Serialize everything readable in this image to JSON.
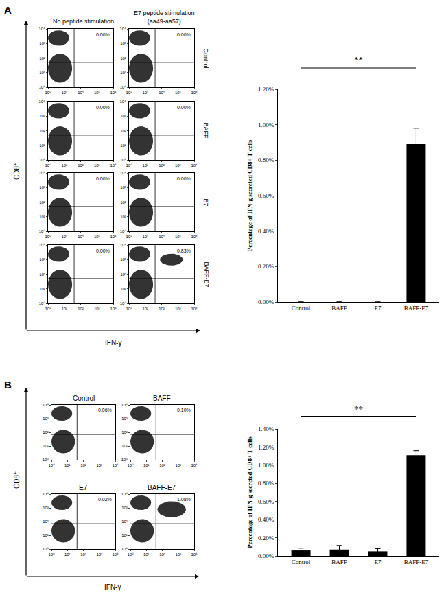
{
  "panels": [
    {
      "label": "A",
      "column_headers": [
        "No peptide stimulation",
        "E7 peptide stimulation (aa49-aa57)"
      ],
      "row_labels": [
        "Control",
        "BAFF",
        "E7",
        "BAFF-E7"
      ],
      "x_label": "IFN-γ",
      "y_label": "CD8⁺"
    },
    {
      "label": "B",
      "x_label": "IFN-γ",
      "y_label": "CD8⁺"
    }
  ],
  "chart_data": [
    {
      "type": "scatter",
      "panel": "A",
      "log": true,
      "xlim": [
        1,
        10000
      ],
      "ylim": [
        1,
        10000
      ],
      "xticks": [
        {
          "value": 1,
          "label": "10⁰"
        },
        {
          "value": 10,
          "label": "10¹"
        },
        {
          "value": 100,
          "label": "10²"
        },
        {
          "value": 1000,
          "label": "10³"
        },
        {
          "value": 10000,
          "label": "10⁴"
        }
      ],
      "yticks": [
        {
          "value": 1,
          "label": "10⁰"
        },
        {
          "value": 10,
          "label": "10¹"
        },
        {
          "value": 100,
          "label": "10²"
        },
        {
          "value": 1000,
          "label": "10³"
        },
        {
          "value": 10000,
          "label": "10⁴"
        }
      ],
      "gates": {
        "x": 40,
        "y": 50
      },
      "quadrant_label": "0.00%",
      "populations": [
        {
          "x0": 1,
          "x1": 20,
          "y0": 700,
          "y1": 8000
        },
        {
          "x0": 1,
          "x1": 30,
          "y0": 2,
          "y1": 200
        }
      ],
      "color": "#000000"
    },
    {
      "type": "scatter",
      "panel": "A",
      "log": true,
      "xlim": [
        1,
        10000
      ],
      "ylim": [
        1,
        10000
      ],
      "xticks": [
        {
          "value": 1,
          "label": "10⁰"
        },
        {
          "value": 10,
          "label": "10¹"
        },
        {
          "value": 100,
          "label": "10²"
        },
        {
          "value": 1000,
          "label": "10³"
        },
        {
          "value": 10000,
          "label": "10⁴"
        }
      ],
      "yticks": [
        {
          "value": 1,
          "label": "10⁰"
        },
        {
          "value": 10,
          "label": "10¹"
        },
        {
          "value": 100,
          "label": "10²"
        },
        {
          "value": 1000,
          "label": "10³"
        },
        {
          "value": 10000,
          "label": "10⁴"
        }
      ],
      "gates": {
        "x": 40,
        "y": 50
      },
      "quadrant_label": "0.00%",
      "populations": [
        {
          "x0": 1,
          "x1": 20,
          "y0": 700,
          "y1": 8000
        },
        {
          "x0": 1,
          "x1": 30,
          "y0": 2,
          "y1": 200
        }
      ],
      "color": "#000000"
    },
    {
      "type": "scatter",
      "panel": "A",
      "log": true,
      "xlim": [
        1,
        10000
      ],
      "ylim": [
        1,
        10000
      ],
      "xticks": [
        {
          "value": 1,
          "label": "10⁰"
        },
        {
          "value": 10,
          "label": "10¹"
        },
        {
          "value": 100,
          "label": "10²"
        },
        {
          "value": 1000,
          "label": "10³"
        },
        {
          "value": 10000,
          "label": "10⁴"
        }
      ],
      "yticks": [
        {
          "value": 1,
          "label": "10⁰"
        },
        {
          "value": 10,
          "label": "10¹"
        },
        {
          "value": 100,
          "label": "10²"
        },
        {
          "value": 1000,
          "label": "10³"
        },
        {
          "value": 10000,
          "label": "10⁴"
        }
      ],
      "gates": {
        "x": 40,
        "y": 50
      },
      "quadrant_label": "0.00%",
      "populations": [
        {
          "x0": 1,
          "x1": 20,
          "y0": 700,
          "y1": 8000
        },
        {
          "x0": 1,
          "x1": 30,
          "y0": 2,
          "y1": 200
        }
      ],
      "color": "#000000"
    },
    {
      "type": "scatter",
      "panel": "A",
      "log": true,
      "xlim": [
        1,
        10000
      ],
      "ylim": [
        1,
        10000
      ],
      "xticks": [
        {
          "value": 1,
          "label": "10⁰"
        },
        {
          "value": 10,
          "label": "10¹"
        },
        {
          "value": 100,
          "label": "10²"
        },
        {
          "value": 1000,
          "label": "10³"
        },
        {
          "value": 10000,
          "label": "10⁴"
        }
      ],
      "yticks": [
        {
          "value": 1,
          "label": "10⁰"
        },
        {
          "value": 10,
          "label": "10¹"
        },
        {
          "value": 100,
          "label": "10²"
        },
        {
          "value": 1000,
          "label": "10³"
        },
        {
          "value": 10000,
          "label": "10⁴"
        }
      ],
      "gates": {
        "x": 40,
        "y": 50
      },
      "quadrant_label": "0.00%",
      "populations": [
        {
          "x0": 1,
          "x1": 20,
          "y0": 700,
          "y1": 8000
        },
        {
          "x0": 1,
          "x1": 30,
          "y0": 2,
          "y1": 200
        }
      ],
      "color": "#000000"
    },
    {
      "type": "scatter",
      "panel": "A",
      "log": true,
      "xlim": [
        1,
        10000
      ],
      "ylim": [
        1,
        10000
      ],
      "xticks": [
        {
          "value": 1,
          "label": "10⁰"
        },
        {
          "value": 10,
          "label": "10¹"
        },
        {
          "value": 100,
          "label": "10²"
        },
        {
          "value": 1000,
          "label": "10³"
        },
        {
          "value": 10000,
          "label": "10⁴"
        }
      ],
      "yticks": [
        {
          "value": 1,
          "label": "10⁰"
        },
        {
          "value": 10,
          "label": "10¹"
        },
        {
          "value": 100,
          "label": "10²"
        },
        {
          "value": 1000,
          "label": "10³"
        },
        {
          "value": 10000,
          "label": "10⁴"
        }
      ],
      "gates": {
        "x": 40,
        "y": 50
      },
      "quadrant_label": "0.00%",
      "populations": [
        {
          "x0": 1,
          "x1": 20,
          "y0": 700,
          "y1": 8000
        },
        {
          "x0": 1,
          "x1": 30,
          "y0": 2,
          "y1": 200
        }
      ],
      "color": "#000000"
    },
    {
      "type": "scatter",
      "panel": "A",
      "log": true,
      "xlim": [
        1,
        10000
      ],
      "ylim": [
        1,
        10000
      ],
      "xticks": [
        {
          "value": 1,
          "label": "10⁰"
        },
        {
          "value": 10,
          "label": "10¹"
        },
        {
          "value": 100,
          "label": "10²"
        },
        {
          "value": 1000,
          "label": "10³"
        },
        {
          "value": 10000,
          "label": "10⁴"
        }
      ],
      "yticks": [
        {
          "value": 1,
          "label": "10⁰"
        },
        {
          "value": 10,
          "label": "10¹"
        },
        {
          "value": 100,
          "label": "10²"
        },
        {
          "value": 1000,
          "label": "10³"
        },
        {
          "value": 10000,
          "label": "10⁴"
        }
      ],
      "gates": {
        "x": 40,
        "y": 50
      },
      "quadrant_label": "0.00%",
      "populations": [
        {
          "x0": 1,
          "x1": 20,
          "y0": 700,
          "y1": 8000
        },
        {
          "x0": 1,
          "x1": 30,
          "y0": 2,
          "y1": 200
        }
      ],
      "color": "#000000"
    },
    {
      "type": "scatter",
      "panel": "A",
      "log": true,
      "xlim": [
        1,
        10000
      ],
      "ylim": [
        1,
        10000
      ],
      "xticks": [
        {
          "value": 1,
          "label": "10⁰"
        },
        {
          "value": 10,
          "label": "10¹"
        },
        {
          "value": 100,
          "label": "10²"
        },
        {
          "value": 1000,
          "label": "10³"
        },
        {
          "value": 10000,
          "label": "10⁴"
        }
      ],
      "yticks": [
        {
          "value": 1,
          "label": "10⁰"
        },
        {
          "value": 10,
          "label": "10¹"
        },
        {
          "value": 100,
          "label": "10²"
        },
        {
          "value": 1000,
          "label": "10³"
        },
        {
          "value": 10000,
          "label": "10⁴"
        }
      ],
      "gates": {
        "x": 40,
        "y": 50
      },
      "quadrant_label": "0.00%",
      "populations": [
        {
          "x0": 1,
          "x1": 20,
          "y0": 700,
          "y1": 8000
        },
        {
          "x0": 1,
          "x1": 30,
          "y0": 2,
          "y1": 200
        }
      ],
      "color": "#000000"
    },
    {
      "type": "scatter",
      "panel": "A",
      "log": true,
      "xlim": [
        1,
        10000
      ],
      "ylim": [
        1,
        10000
      ],
      "xticks": [
        {
          "value": 1,
          "label": "10⁰"
        },
        {
          "value": 10,
          "label": "10¹"
        },
        {
          "value": 100,
          "label": "10²"
        },
        {
          "value": 1000,
          "label": "10³"
        },
        {
          "value": 10000,
          "label": "10⁴"
        }
      ],
      "yticks": [
        {
          "value": 1,
          "label": "10⁰"
        },
        {
          "value": 10,
          "label": "10¹"
        },
        {
          "value": 100,
          "label": "10²"
        },
        {
          "value": 1000,
          "label": "10³"
        },
        {
          "value": 10000,
          "label": "10⁴"
        }
      ],
      "gates": {
        "x": 40,
        "y": 50
      },
      "quadrant_label": "0.83%",
      "populations": [
        {
          "x0": 1,
          "x1": 20,
          "y0": 700,
          "y1": 8000
        },
        {
          "x0": 1,
          "x1": 30,
          "y0": 2,
          "y1": 200
        },
        {
          "x0": 80,
          "x1": 2000,
          "y0": 400,
          "y1": 2500
        }
      ],
      "color": "#000000"
    },
    {
      "type": "bar",
      "panel": "A",
      "categories": [
        "Control",
        "BAFF",
        "E7",
        "BAFF-E7"
      ],
      "values": [
        0,
        0,
        0,
        0.89
      ],
      "errors": [
        0,
        0,
        0,
        0.09
      ],
      "color": "#000000",
      "ylim": [
        0,
        1.2
      ],
      "yticks": [
        {
          "value": 0,
          "label": "0.00%"
        },
        {
          "value": 0.2,
          "label": "0.20%"
        },
        {
          "value": 0.4,
          "label": "0.40%"
        },
        {
          "value": 0.6,
          "label": "0.60%"
        },
        {
          "value": 0.8,
          "label": "0.80%"
        },
        {
          "value": 1.0,
          "label": "1.00%"
        },
        {
          "value": 1.2,
          "label": "1.20%"
        }
      ],
      "y_label": "Percentage of IFN-g secreted CD8+ T cells",
      "significance": {
        "from": "Control",
        "to": "BAFF-E7",
        "label": "**"
      }
    },
    {
      "type": "scatter",
      "panel": "B",
      "title": "Control",
      "log": true,
      "xlim": [
        1,
        10000
      ],
      "ylim": [
        1,
        10000
      ],
      "xticks": [
        {
          "value": 1,
          "label": "10⁰"
        },
        {
          "value": 10,
          "label": "10¹"
        },
        {
          "value": 100,
          "label": "10²"
        },
        {
          "value": 1000,
          "label": "10³"
        },
        {
          "value": 10000,
          "label": "10⁴"
        }
      ],
      "yticks": [
        {
          "value": 1,
          "label": "10⁰"
        },
        {
          "value": 10,
          "label": "10¹"
        },
        {
          "value": 100,
          "label": "10²"
        },
        {
          "value": 1000,
          "label": "10³"
        },
        {
          "value": 10000,
          "label": "10⁴"
        }
      ],
      "gates": {
        "x": 40,
        "y": 70
      },
      "quadrant_label": "0.06%",
      "populations": [
        {
          "x0": 1,
          "x1": 20,
          "y0": 700,
          "y1": 8000
        },
        {
          "x0": 1,
          "x1": 30,
          "y0": 3,
          "y1": 150
        }
      ],
      "color": "#000000"
    },
    {
      "type": "scatter",
      "panel": "B",
      "title": "BAFF",
      "log": true,
      "xlim": [
        1,
        10000
      ],
      "ylim": [
        1,
        10000
      ],
      "xticks": [
        {
          "value": 1,
          "label": "10⁰"
        },
        {
          "value": 10,
          "label": "10¹"
        },
        {
          "value": 100,
          "label": "10²"
        },
        {
          "value": 1000,
          "label": "10³"
        },
        {
          "value": 10000,
          "label": "10⁴"
        }
      ],
      "yticks": [
        {
          "value": 1,
          "label": "10⁰"
        },
        {
          "value": 10,
          "label": "10¹"
        },
        {
          "value": 100,
          "label": "10²"
        },
        {
          "value": 1000,
          "label": "10³"
        },
        {
          "value": 10000,
          "label": "10⁴"
        }
      ],
      "gates": {
        "x": 40,
        "y": 70
      },
      "quadrant_label": "0.10%",
      "populations": [
        {
          "x0": 1,
          "x1": 20,
          "y0": 700,
          "y1": 8000
        },
        {
          "x0": 1,
          "x1": 30,
          "y0": 3,
          "y1": 150
        }
      ],
      "color": "#000000"
    },
    {
      "type": "scatter",
      "panel": "B",
      "title": "E7",
      "log": true,
      "xlim": [
        1,
        10000
      ],
      "ylim": [
        1,
        10000
      ],
      "xticks": [
        {
          "value": 1,
          "label": "10⁰"
        },
        {
          "value": 10,
          "label": "10¹"
        },
        {
          "value": 100,
          "label": "10²"
        },
        {
          "value": 1000,
          "label": "10³"
        },
        {
          "value": 10000,
          "label": "10⁴"
        }
      ],
      "yticks": [
        {
          "value": 1,
          "label": "10⁰"
        },
        {
          "value": 10,
          "label": "10¹"
        },
        {
          "value": 100,
          "label": "10²"
        },
        {
          "value": 1000,
          "label": "10³"
        },
        {
          "value": 10000,
          "label": "10⁴"
        }
      ],
      "gates": {
        "x": 40,
        "y": 70
      },
      "quadrant_label": "0.02%",
      "populations": [
        {
          "x0": 1,
          "x1": 20,
          "y0": 700,
          "y1": 8000
        },
        {
          "x0": 1,
          "x1": 30,
          "y0": 3,
          "y1": 150
        }
      ],
      "color": "#000000"
    },
    {
      "type": "scatter",
      "panel": "B",
      "title": "BAFF-E7",
      "log": true,
      "xlim": [
        1,
        10000
      ],
      "ylim": [
        1,
        10000
      ],
      "xticks": [
        {
          "value": 1,
          "label": "10⁰"
        },
        {
          "value": 10,
          "label": "10¹"
        },
        {
          "value": 100,
          "label": "10²"
        },
        {
          "value": 1000,
          "label": "10³"
        },
        {
          "value": 10000,
          "label": "10⁴"
        }
      ],
      "yticks": [
        {
          "value": 1,
          "label": "10⁰"
        },
        {
          "value": 10,
          "label": "10¹"
        },
        {
          "value": 100,
          "label": "10²"
        },
        {
          "value": 1000,
          "label": "10³"
        },
        {
          "value": 10000,
          "label": "10⁴"
        }
      ],
      "gates": {
        "x": 40,
        "y": 70
      },
      "quadrant_label": "1.08%",
      "populations": [
        {
          "x0": 1,
          "x1": 20,
          "y0": 700,
          "y1": 8000
        },
        {
          "x0": 1,
          "x1": 30,
          "y0": 3,
          "y1": 150
        },
        {
          "x0": 50,
          "x1": 3000,
          "y0": 200,
          "y1": 3000
        }
      ],
      "color": "#000000"
    },
    {
      "type": "bar",
      "panel": "B",
      "categories": [
        "Control",
        "BAFF",
        "E7",
        "BAFF-E7"
      ],
      "values": [
        0.06,
        0.07,
        0.05,
        1.11
      ],
      "errors": [
        0.025,
        0.045,
        0.03,
        0.05
      ],
      "color": "#000000",
      "ylim": [
        0,
        1.4
      ],
      "yticks": [
        {
          "value": 0,
          "label": "0.00%"
        },
        {
          "value": 0.2,
          "label": "0.20%"
        },
        {
          "value": 0.4,
          "label": "0.40%"
        },
        {
          "value": 0.6,
          "label": "0.60%"
        },
        {
          "value": 0.8,
          "label": "0.80%"
        },
        {
          "value": 1.0,
          "label": "1.00%"
        },
        {
          "value": 1.2,
          "label": "1.20%"
        },
        {
          "value": 1.4,
          "label": "1.40%"
        }
      ],
      "y_label": "Percentage of IFN-g secreted CD8+ T cells",
      "significance": {
        "from": "Control",
        "to": "BAFF-E7",
        "label": "**"
      }
    }
  ]
}
